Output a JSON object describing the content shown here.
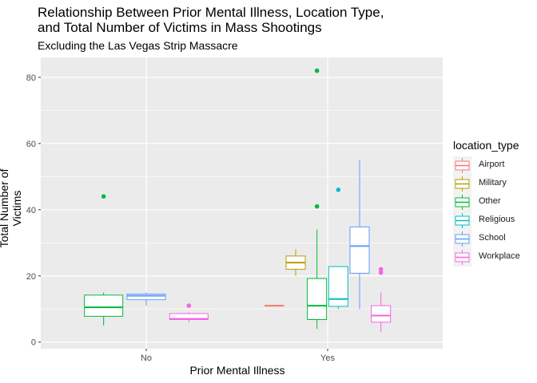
{
  "title_line1": "Relationship Between Prior Mental Illness, Location Type,",
  "title_line2": "and Total Number of Victims in Mass Shootings",
  "subtitle": "Excluding the Las Vegas Strip Massacre",
  "chart_data": {
    "type": "boxplot",
    "xlabel": "Prior Mental Illness",
    "ylabel": "Total Number of Victims",
    "categories": [
      "No",
      "Yes"
    ],
    "ylim": [
      -2,
      86
    ],
    "yticks": [
      0,
      20,
      40,
      60,
      80
    ],
    "grid": true,
    "legend_title": "location_type",
    "legend_position": "right",
    "series": [
      {
        "name": "Airport",
        "color": "#F8766D",
        "boxes": [
          {
            "category": "Yes",
            "slot": 0,
            "of": 6,
            "min": 11,
            "q1": 11,
            "median": 11,
            "q3": 11,
            "max": 11,
            "outliers": []
          }
        ]
      },
      {
        "name": "Military",
        "color": "#B79F00",
        "boxes": [
          {
            "category": "Yes",
            "slot": 1,
            "of": 6,
            "min": 20,
            "q1": 22,
            "median": 24,
            "q3": 26,
            "max": 28,
            "outliers": []
          }
        ]
      },
      {
        "name": "Other",
        "color": "#00BA38",
        "boxes": [
          {
            "category": "No",
            "slot": 0,
            "of": 3,
            "min": 5,
            "q1": 7.8,
            "median": 10.5,
            "q3": 14.2,
            "max": 15,
            "outliers": [
              44
            ]
          },
          {
            "category": "Yes",
            "slot": 2,
            "of": 6,
            "min": 4,
            "q1": 6.8,
            "median": 11,
            "q3": 19.2,
            "max": 34,
            "outliers": [
              41,
              82
            ]
          }
        ]
      },
      {
        "name": "Religious",
        "color": "#00BFC4",
        "boxes": [
          {
            "category": "Yes",
            "slot": 3,
            "of": 6,
            "min": 10,
            "q1": 10.8,
            "median": 13,
            "q3": 22.8,
            "max": 23,
            "outliers": [
              46
            ]
          }
        ]
      },
      {
        "name": "School",
        "color": "#619CFF",
        "boxes": [
          {
            "category": "No",
            "slot": 1,
            "of": 3,
            "min": 11,
            "q1": 12.8,
            "median": 14,
            "q3": 14.5,
            "max": 15,
            "outliers": []
          },
          {
            "category": "Yes",
            "slot": 4,
            "of": 6,
            "min": 10,
            "q1": 20.8,
            "median": 29,
            "q3": 34.8,
            "max": 55,
            "outliers": []
          }
        ]
      },
      {
        "name": "Workplace",
        "color": "#F564E3",
        "boxes": [
          {
            "category": "No",
            "slot": 2,
            "of": 3,
            "min": 6,
            "q1": 6.8,
            "median": 7,
            "q3": 8.6,
            "max": 9,
            "outliers": [
              11
            ]
          },
          {
            "category": "Yes",
            "slot": 5,
            "of": 6,
            "min": 3,
            "q1": 6,
            "median": 8,
            "q3": 11,
            "max": 15,
            "outliers": [
              21,
              22
            ]
          }
        ]
      }
    ]
  }
}
